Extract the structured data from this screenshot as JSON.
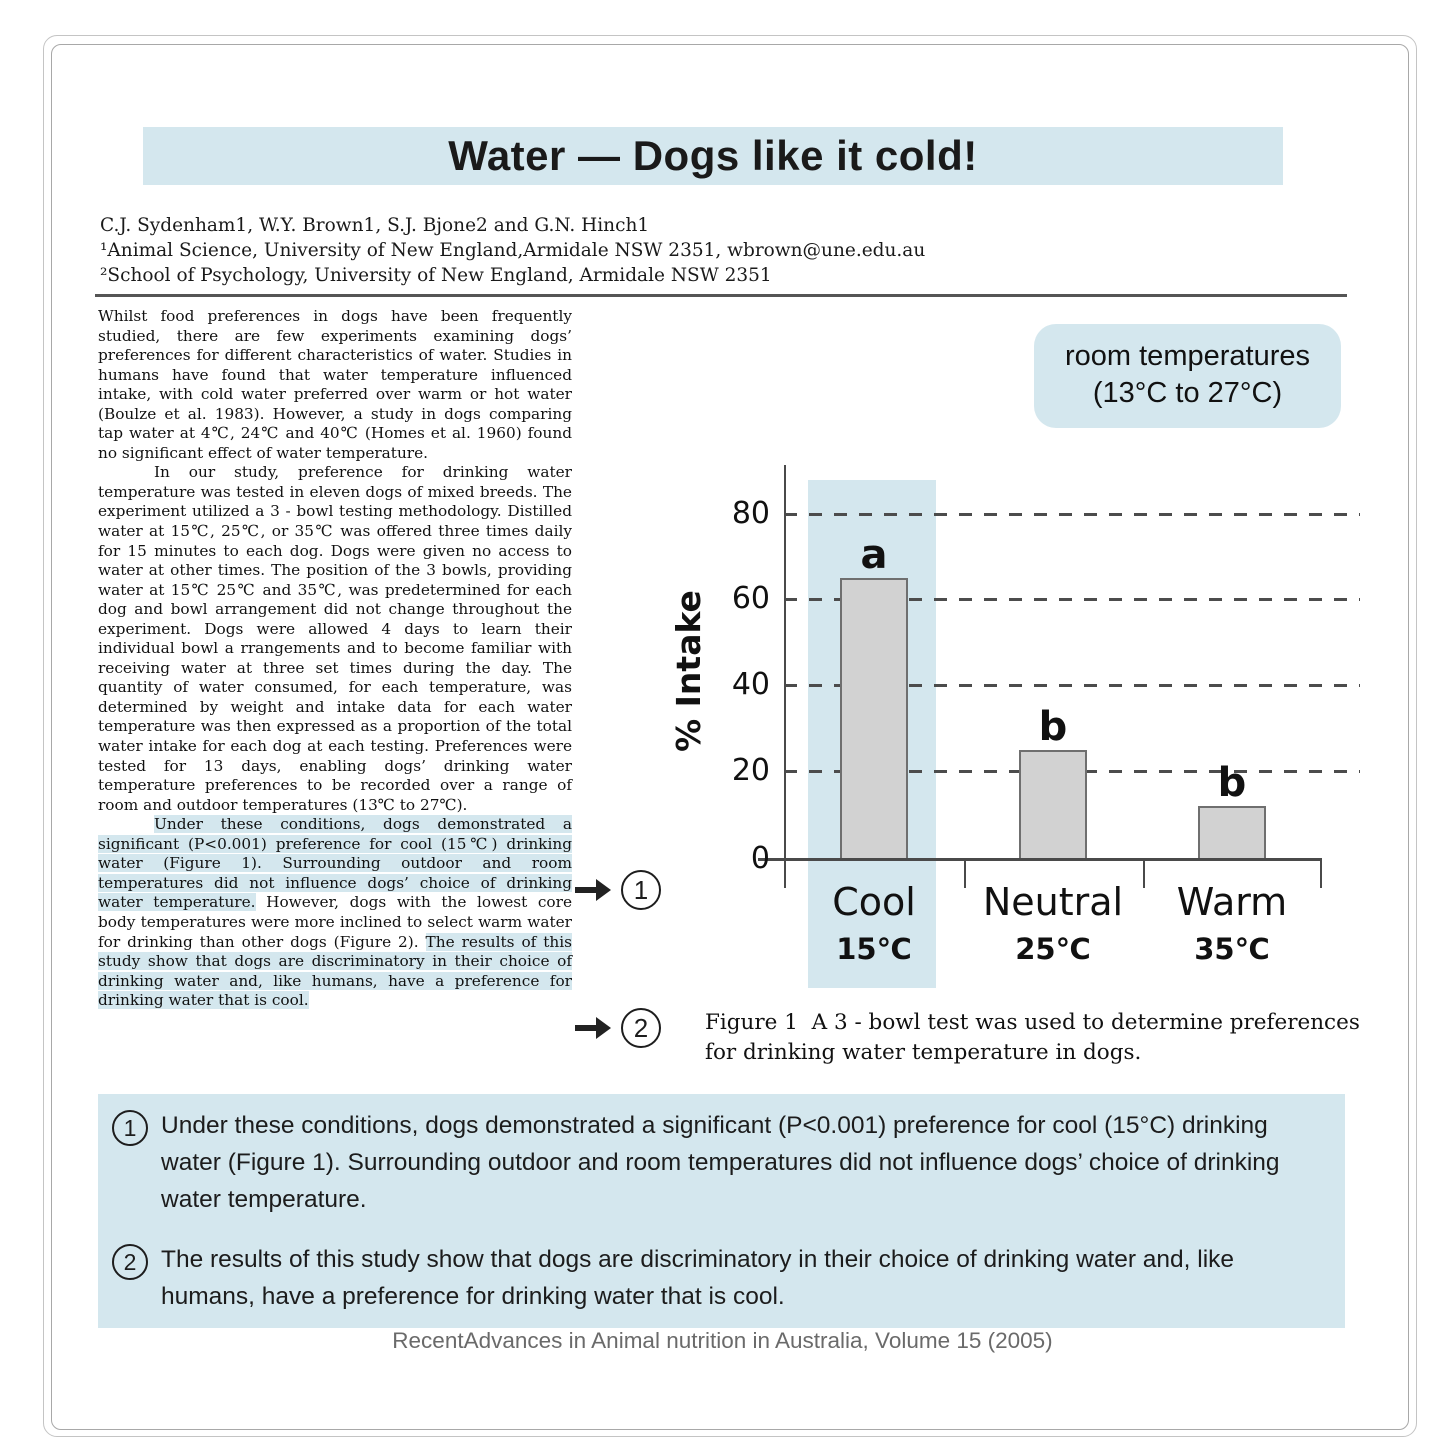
{
  "title": "Water — Dogs like it cold!",
  "authors": {
    "line1": "C.J. Sydenham1, W.Y. Brown1, S.J. Bjone2 and G.N. Hinch1",
    "line2": "¹Animal Science, University of New England,Armidale NSW 2351, wbrown@une.edu.au",
    "line3": "²School of Psychology, University of New England, Armidale NSW 2351"
  },
  "body": {
    "p1": "Whilst food preferences in dogs have been frequently studied, there are few experiments examining dogs’ preferences for different characteristics of water. Studies in humans have found that water temperature influenced intake, with cold water preferred over warm or hot water (Boulze et al. 1983). However, a study in dogs comparing tap water at 4℃, 24℃ and 40℃ (Homes et al. 1960) found no significant effect of water temperature.",
    "p2": "In our study, preference for drinking water temperature was tested in eleven dogs of mixed breeds. The experiment utilized a 3 - bowl testing methodology. Distilled water at 15℃, 25℃, or 35℃ was offered three times daily for 15 minutes to each dog. Dogs were given no access to water at other times. The position of the 3 bowls, providing water at 15℃ 25℃ and 35℃, was predetermined for each dog and bowl arrangement did not change throughout the experiment. Dogs were allowed 4 days to learn their individual bowl a rrangements and to become familiar with receiving water at three set times during the day. The quantity of water consumed, for each temperature, was determined by weight and intake data for each water temperature was then expressed as a proportion of the total water intake for each dog at each testing. Preferences were tested for 13 days, enabling dogs’  drinking water temperature preferences to be recorded over a range of room and outdoor temperatures (13℃ to 27℃).",
    "p3_hl1": "Under these conditions, dogs demonstrated a significant (P<0.001) preference for cool (15℃) drinking water (Figure 1). Surrounding outdoor and room temperatures did not influence dogs’ choice of drinking water temperature.",
    "p3_mid": " However, dogs with the lowest core body temperatures were more inclined to select warm water for drinking than other dogs (Figure 2). ",
    "p3_hl2": "The results of this study show that dogs are discriminatory in their choice of drinking water and, like humans, have a preference for drinking water that is cool."
  },
  "badge": {
    "line1": "room temperatures",
    "line2": "(13°C to 27°C)"
  },
  "chart_data": {
    "type": "bar",
    "ylabel": "% Intake",
    "categories": [
      "Cool",
      "Neutral",
      "Warm"
    ],
    "category_temps": [
      "15℃",
      "25℃",
      "35℃"
    ],
    "values": [
      65,
      25,
      12
    ],
    "bar_letters": [
      "a",
      "b",
      "b"
    ],
    "yticks": [
      0,
      20,
      40,
      60,
      80
    ],
    "ylim": [
      0,
      88
    ],
    "grid": "horizontal dashed lines at 20, 40, 60, 80",
    "legend_position": "none",
    "highlighted_category": "Cool",
    "highlight_color": "#d4e7ee",
    "bar_fill": "#d2d2d2",
    "bar_border": "#6f6f6f"
  },
  "figure_caption": "Figure 1  A 3 - bowl test was used to determine preferences for drinking water temperature in dogs.",
  "markers": {
    "m1": "1",
    "m2": "2"
  },
  "annotations": [
    {
      "num": "1",
      "text": "Under these conditions, dogs demonstrated a significant (P<0.001) preference for cool (15°C) drinking water (Figure 1). Surrounding outdoor and room temperatures did not influence dogs’ choice of drinking water temperature."
    },
    {
      "num": "2",
      "text": "The results of this study show that dogs are discriminatory in their choice of drinking water and, like humans, have a preference for drinking water that is cool."
    }
  ],
  "footer": "RecentAdvances in Animal nutrition in Australia, Volume 15 (2005)",
  "colors": {
    "accent_blue": "#d4e7ee",
    "text": "#1a1a1a",
    "footer_gray": "#6a6a6a",
    "frame_gray": "#b5b5b5"
  }
}
